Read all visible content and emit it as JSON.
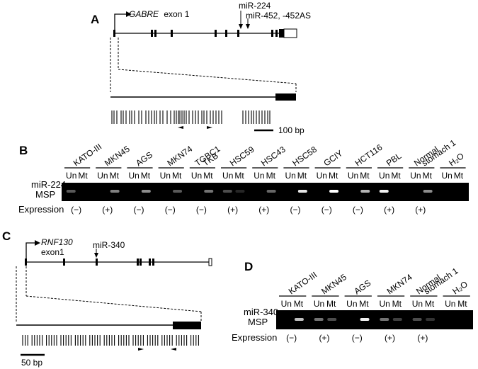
{
  "panels": {
    "a": {
      "letter": "A",
      "gene": "GABRE",
      "exon_label": "exon 1",
      "mirna_labels": [
        "miR-224",
        "miR-452, -452AS"
      ],
      "scale": "100 bp"
    },
    "b": {
      "letter": "B",
      "lanes": [
        "KATO-III",
        "MKN45",
        "AGS",
        "MKN74",
        "TGBC1 TKB",
        "HSC59",
        "HSC43",
        "HSC58",
        "GCIY",
        "HCT116",
        "PBL",
        "Normal stomach 1",
        "H₂O"
      ],
      "un": "Un",
      "mt": "Mt",
      "assay_line1": "miR-224",
      "assay_line2": "MSP",
      "expression_label": "Expression",
      "expression": [
        "(−)",
        "(+)",
        "(−)",
        "(−)",
        "(−)",
        "(+)",
        "(+)",
        "(−)",
        "(−)",
        "(−)",
        "(+)",
        "(+)"
      ],
      "bands": [
        {
          "un": 0.35,
          "mt": 0.0
        },
        {
          "un": 0.0,
          "mt": 0.5
        },
        {
          "un": 0.0,
          "mt": 0.55
        },
        {
          "un": 0.0,
          "mt": 0.35
        },
        {
          "un": 0.0,
          "mt": 0.45
        },
        {
          "un": 0.3,
          "mt": 0.15
        },
        {
          "un": 0.0,
          "mt": 0.4
        },
        {
          "un": 0.0,
          "mt": 0.9
        },
        {
          "un": 0.0,
          "mt": 1.0
        },
        {
          "un": 0.0,
          "mt": 0.7
        },
        {
          "un": 0.95,
          "mt": 0.0
        },
        {
          "un": 0.0,
          "mt": 0.55
        },
        {
          "un": 0.0,
          "mt": 0.0
        }
      ]
    },
    "c": {
      "letter": "C",
      "gene": "RNF130",
      "exon_label": "exon1",
      "mirna_label": "miR-340",
      "scale": "50 bp"
    },
    "d": {
      "letter": "D",
      "lanes": [
        "KATO-III",
        "MKN45",
        "AGS",
        "MKN74",
        "Normal stomach 1",
        "H₂O"
      ],
      "un": "Un",
      "mt": "Mt",
      "assay_line1": "miR-340",
      "assay_line2": "MSP",
      "expression_label": "Expression",
      "expression": [
        "(−)",
        "(+)",
        "(−)",
        "(+)",
        "(+)"
      ],
      "bands": [
        {
          "un": 0.0,
          "mt": 0.75
        },
        {
          "un": 0.45,
          "mt": 0.3
        },
        {
          "un": 0.0,
          "mt": 0.95
        },
        {
          "un": 0.45,
          "mt": 0.25
        },
        {
          "un": 0.3,
          "mt": 0.2
        },
        {
          "un": 0.0,
          "mt": 0.0
        }
      ]
    }
  }
}
